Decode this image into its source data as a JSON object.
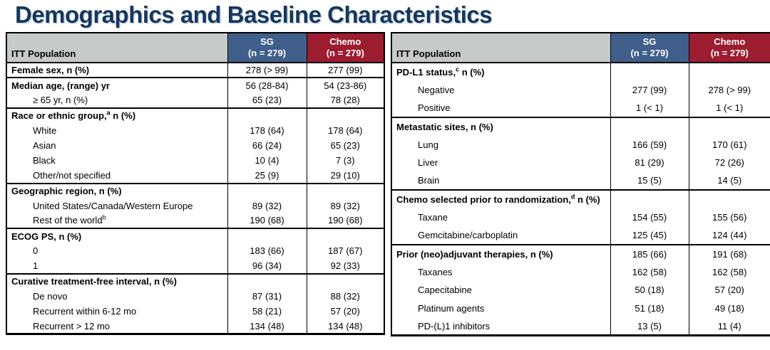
{
  "title": "Demographics and Baseline Characteristics",
  "colors": {
    "title_navy": "#17365D",
    "header_gray": "#C6CAC8",
    "sg_blue": "#405F8A",
    "chemo_red": "#9C1C30"
  },
  "tables": [
    {
      "header": {
        "population_label": "ITT Population",
        "sg_label": "SG",
        "sg_n": "(n = 279)",
        "chemo_label": "Chemo",
        "chemo_n": "(n = 279)"
      },
      "groups": [
        {
          "rows": [
            {
              "label": "Female sex, n (%)",
              "bold": true,
              "sg": "278 (> 99)",
              "chemo": "277 (99)"
            }
          ]
        },
        {
          "rows": [
            {
              "label": "Median age, (range) yr",
              "bold": true,
              "sg": "56 (28-84)",
              "chemo": "54 (23-86)"
            },
            {
              "label": "≥ 65 yr, n (%)",
              "indent": true,
              "sg": "65 (23)",
              "chemo": "78 (28)"
            }
          ]
        },
        {
          "rows": [
            {
              "label": "Race or ethnic group,",
              "sup": "a",
              "label2": " n (%)",
              "bold": true,
              "sg": "",
              "chemo": ""
            },
            {
              "label": "White",
              "indent": true,
              "sg": "178 (64)",
              "chemo": "178 (64)"
            },
            {
              "label": "Asian",
              "indent": true,
              "sg": "66 (24)",
              "chemo": "65 (23)"
            },
            {
              "label": "Black",
              "indent": true,
              "sg": "10 (4)",
              "chemo": "7 (3)"
            },
            {
              "label": "Other/not specified",
              "indent": true,
              "sg": "25 (9)",
              "chemo": "29 (10)"
            }
          ]
        },
        {
          "rows": [
            {
              "label": "Geographic region, n (%)",
              "bold": true,
              "sg": "",
              "chemo": ""
            },
            {
              "label": "United States/Canada/Western Europe",
              "indent": true,
              "sg": "89 (32)",
              "chemo": "89 (32)"
            },
            {
              "label": "Rest of the world",
              "sup": "b",
              "label2": "",
              "indent": true,
              "sg": "190 (68)",
              "chemo": "190 (68)"
            }
          ]
        },
        {
          "rows": [
            {
              "label": "ECOG PS, n (%)",
              "bold": true,
              "sg": "",
              "chemo": ""
            },
            {
              "label": "0",
              "indent": true,
              "sg": "183 (66)",
              "chemo": "187 (67)"
            },
            {
              "label": "1",
              "indent": true,
              "sg": "96 (34)",
              "chemo": "92 (33)"
            }
          ]
        },
        {
          "rows": [
            {
              "label": "Curative treatment-free interval, n (%)",
              "bold": true,
              "sg": "",
              "chemo": ""
            },
            {
              "label": "De novo",
              "indent": true,
              "sg": "87 (31)",
              "chemo": "88 (32)"
            },
            {
              "label": "Recurrent within 6-12 mo",
              "indent": true,
              "sg": "58 (21)",
              "chemo": "57 (20)"
            },
            {
              "label": "Recurrent > 12 mo",
              "indent": true,
              "sg": "134 (48)",
              "chemo": "134 (48)"
            }
          ]
        }
      ]
    },
    {
      "header": {
        "population_label": "ITT Population",
        "sg_label": "SG",
        "sg_n": "(n = 279)",
        "chemo_label": "Chemo",
        "chemo_n": "(n = 279)"
      },
      "groups": [
        {
          "rows": [
            {
              "label": "PD-L1 status,",
              "sup": "c",
              "label2": " n (%)",
              "bold": true,
              "sg": "",
              "chemo": ""
            },
            {
              "label": "Negative",
              "indent": true,
              "sg": "277 (99)",
              "chemo": "278 (> 99)"
            },
            {
              "label": "Positive",
              "indent": true,
              "sg": "1 (< 1)",
              "chemo": "1 (< 1)"
            }
          ]
        },
        {
          "rows": [
            {
              "label": "Metastatic sites, n (%)",
              "bold": true,
              "sg": "",
              "chemo": ""
            },
            {
              "label": "Lung",
              "indent": true,
              "sg": "166 (59)",
              "chemo": "170 (61)"
            },
            {
              "label": "Liver",
              "indent": true,
              "sg": "81 (29)",
              "chemo": "72 (26)"
            },
            {
              "label": "Brain",
              "indent": true,
              "sg": "15 (5)",
              "chemo": "14 (5)"
            }
          ]
        },
        {
          "rows": [
            {
              "label": "Chemo selected prior to randomization,",
              "sup": "d",
              "label2": " n (%)",
              "bold": true,
              "sg": "",
              "chemo": ""
            },
            {
              "label": "Taxane",
              "indent": true,
              "sg": "154 (55)",
              "chemo": "155 (56)"
            },
            {
              "label": "Gemcitabine/carboplatin",
              "indent": true,
              "sg": "125 (45)",
              "chemo": "124 (44)"
            }
          ]
        },
        {
          "rows": [
            {
              "label": "Prior (neo)adjuvant therapies, n (%)",
              "bold": true,
              "sg": "185 (66)",
              "chemo": "191 (68)"
            },
            {
              "label": "Taxanes",
              "indent": true,
              "sg": "162 (58)",
              "chemo": "162 (58)"
            },
            {
              "label": "Capecitabine",
              "indent": true,
              "sg": "50 (18)",
              "chemo": "57 (20)"
            },
            {
              "label": "Platinum agents",
              "indent": true,
              "sg": "51 (18)",
              "chemo": "49 (18)"
            },
            {
              "label": "PD-(L)1 inhibitors",
              "indent": true,
              "sg": "13 (5)",
              "chemo": "11 (4)"
            }
          ]
        }
      ]
    }
  ]
}
